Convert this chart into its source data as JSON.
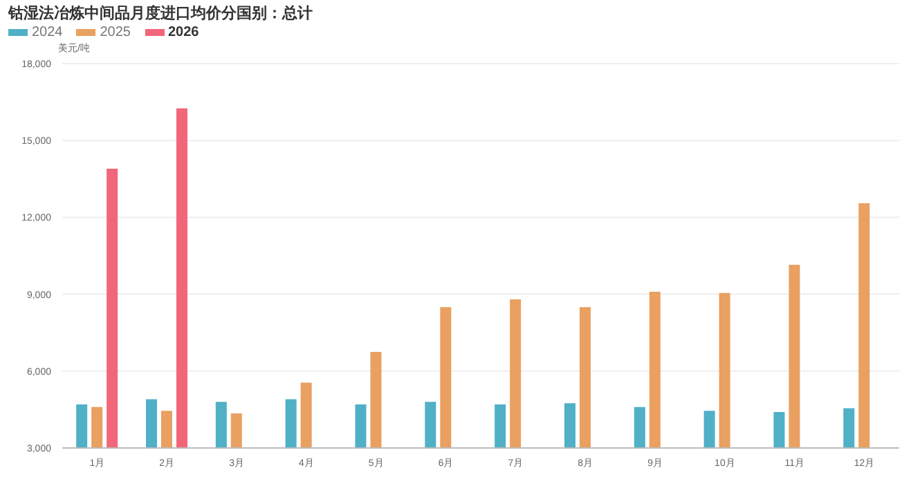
{
  "chart_data": {
    "type": "bar",
    "title": "钴湿法冶炼中间品月度进口均价分国别：总计",
    "ylabel": "美元/吨",
    "categories": [
      "1月",
      "2月",
      "3月",
      "4月",
      "5月",
      "6月",
      "7月",
      "8月",
      "9月",
      "10月",
      "11月",
      "12月"
    ],
    "series": [
      {
        "name": "2024",
        "color": "#4fb0c6",
        "values": [
          4700,
          4900,
          4800,
          4900,
          4700,
          4800,
          4700,
          4750,
          4600,
          4450,
          4400,
          4550
        ]
      },
      {
        "name": "2025",
        "color": "#e9a060",
        "values": [
          4600,
          4450,
          4350,
          5550,
          6750,
          8500,
          8800,
          8500,
          9100,
          9050,
          10150,
          12550
        ]
      },
      {
        "name": "2026",
        "color": "#f2667a",
        "values": [
          13900,
          16250,
          null,
          null,
          null,
          null,
          null,
          null,
          null,
          null,
          null,
          null
        ]
      }
    ],
    "ylim": [
      3000,
      18000
    ],
    "yticks": [
      {
        "value": 3000,
        "label": "3,000"
      },
      {
        "value": 6000,
        "label": "6,000"
      },
      {
        "value": 9000,
        "label": "9,000"
      },
      {
        "value": 12000,
        "label": "12,000"
      },
      {
        "value": 15000,
        "label": "15,000"
      },
      {
        "value": 18000,
        "label": "18,000"
      }
    ],
    "grid": "y",
    "legend": "top left"
  }
}
